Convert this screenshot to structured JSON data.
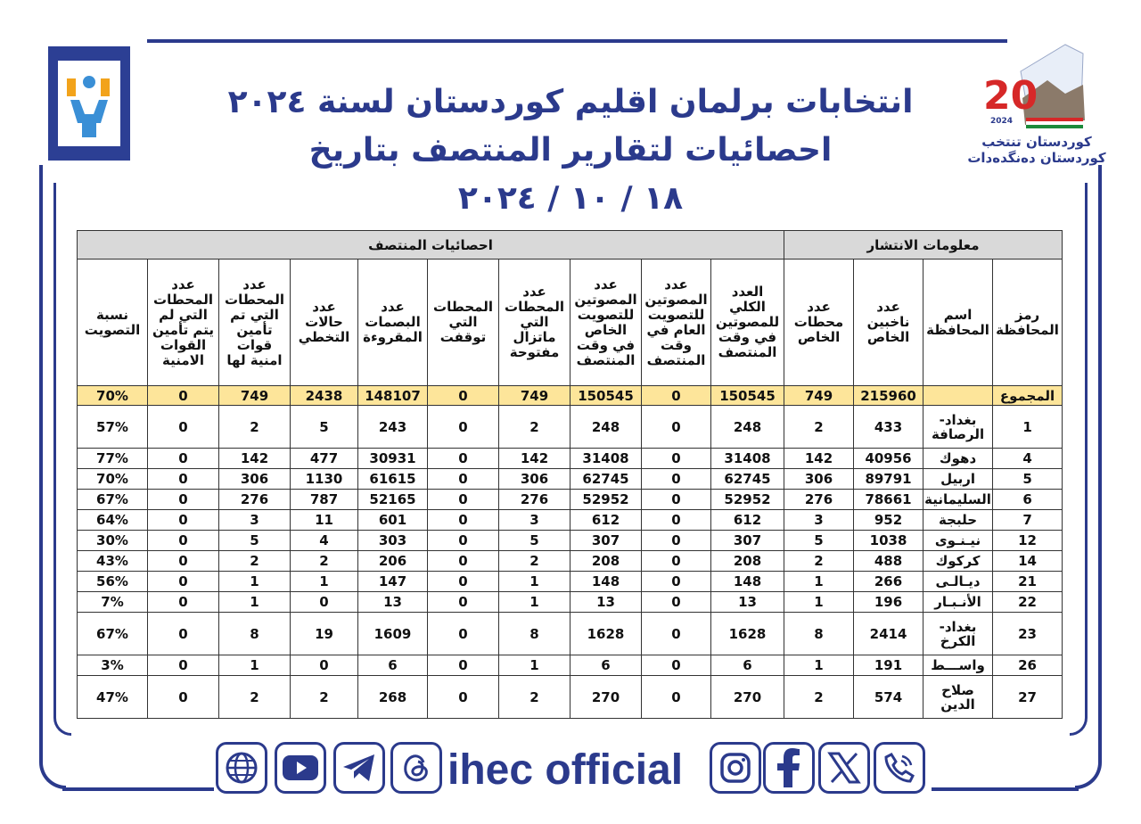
{
  "header": {
    "title_line1": "انتخابات برلمان اقليم كوردستان لسنة ٢٠٢٤",
    "title_line2": "احصائيات لتقارير المنتصف بتاريخ",
    "date": "١٨ / ١٠ / ٢٠٢٤",
    "logo_right": {
      "year_big": "20",
      "year_small": "2024",
      "line1": "كوردستان تنتخب",
      "line2": "كوردستان دەنگدەدات"
    }
  },
  "table": {
    "group_spread": "معلومات الانتشار",
    "group_midday": "احصائيات المنتصف",
    "columns": [
      "رمز المحافظة",
      "اسم المحافظة",
      "عدد ناخبين الخاص",
      "عدد محطات الخاص",
      "العدد الكلي للمصوتين في وقت المنتصف",
      "عدد المصوتين للتصويت العام في وقت المنتصف",
      "عدد المصوتين للتصويت الخاص في وقت المنتصف",
      "عدد المحطات التي ماتزال مفتوحة",
      "المحطات التي توقفت",
      "عدد البصمات المقروءة",
      "عدد حالات التخطي",
      "عدد المحطات التي تم تأمين قوات امنية لها",
      "عدد المحطات التي لم يتم تأمين القوات الامنية",
      "نسبة التصويت"
    ],
    "total": [
      "المجموع",
      "",
      "215960",
      "749",
      "150545",
      "0",
      "150545",
      "749",
      "0",
      "148107",
      "2438",
      "749",
      "0",
      "70%"
    ],
    "rows": [
      [
        "1",
        "بغداد- الرصافة",
        "433",
        "2",
        "248",
        "0",
        "248",
        "2",
        "0",
        "243",
        "5",
        "2",
        "0",
        "57%"
      ],
      [
        "4",
        "دهوك",
        "40956",
        "142",
        "31408",
        "0",
        "31408",
        "142",
        "0",
        "30931",
        "477",
        "142",
        "0",
        "77%"
      ],
      [
        "5",
        "اربيل",
        "89791",
        "306",
        "62745",
        "0",
        "62745",
        "306",
        "0",
        "61615",
        "1130",
        "306",
        "0",
        "70%"
      ],
      [
        "6",
        "السليمانية",
        "78661",
        "276",
        "52952",
        "0",
        "52952",
        "276",
        "0",
        "52165",
        "787",
        "276",
        "0",
        "67%"
      ],
      [
        "7",
        "حلبجة",
        "952",
        "3",
        "612",
        "0",
        "612",
        "3",
        "0",
        "601",
        "11",
        "3",
        "0",
        "64%"
      ],
      [
        "12",
        "نيـنـوى",
        "1038",
        "5",
        "307",
        "0",
        "307",
        "5",
        "0",
        "303",
        "4",
        "5",
        "0",
        "30%"
      ],
      [
        "14",
        "كركوك",
        "488",
        "2",
        "208",
        "0",
        "208",
        "2",
        "0",
        "206",
        "2",
        "2",
        "0",
        "43%"
      ],
      [
        "21",
        "ديـالـى",
        "266",
        "1",
        "148",
        "0",
        "148",
        "1",
        "0",
        "147",
        "1",
        "1",
        "0",
        "56%"
      ],
      [
        "22",
        "الأنـبـار",
        "196",
        "1",
        "13",
        "0",
        "13",
        "1",
        "0",
        "13",
        "0",
        "1",
        "0",
        "7%"
      ],
      [
        "23",
        "بغداد-الكرخ",
        "2414",
        "8",
        "1628",
        "0",
        "1628",
        "8",
        "0",
        "1609",
        "19",
        "8",
        "0",
        "67%"
      ],
      [
        "26",
        "واســـط",
        "191",
        "1",
        "6",
        "0",
        "6",
        "1",
        "0",
        "6",
        "0",
        "1",
        "0",
        "3%"
      ],
      [
        "27",
        "صلاح الدين",
        "574",
        "2",
        "270",
        "0",
        "270",
        "2",
        "0",
        "268",
        "2",
        "2",
        "0",
        "47%"
      ]
    ]
  },
  "footer": {
    "brand": "ihec official",
    "icons_left": [
      "globe-icon",
      "youtube-icon",
      "telegram-icon",
      "threads-icon"
    ],
    "icons_right": [
      "instagram-icon",
      "facebook-icon",
      "x-icon",
      "phone-icon"
    ]
  },
  "colors": {
    "primary": "#2b3a8c",
    "total_row": "#fde59a",
    "group_header": "#d9d9d9"
  }
}
